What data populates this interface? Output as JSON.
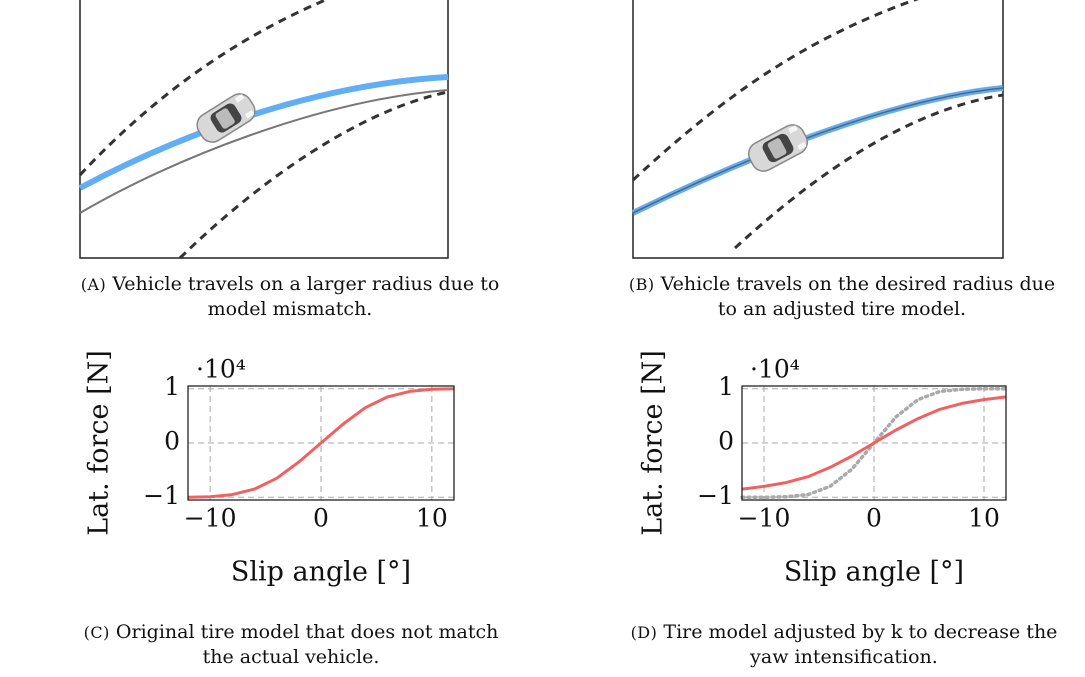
{
  "diagrams": [
    {
      "label": "(A)",
      "caption_lines": [
        "Vehicle travels on a larger radius due to",
        "model mismatch."
      ]
    },
    {
      "label": "(B)",
      "caption_lines": [
        "Vehicle travels on the desired radius due",
        "to an adjusted tire model."
      ]
    }
  ],
  "chart_data": [
    {
      "type": "line",
      "label": "(C)",
      "caption_lines": [
        "Original tire model that does not match",
        "the actual vehicle."
      ],
      "x_label": "Slip angle [°]",
      "y_label": "Lat. force [N]",
      "y_scale_label": "·10⁴",
      "x": [
        -12,
        -10,
        -8,
        -6,
        -4,
        -2,
        0,
        2,
        4,
        6,
        8,
        10,
        12
      ],
      "series": [
        {
          "color": "#f06262",
          "style": "solid",
          "values": [
            -1.0,
            -0.99,
            -0.95,
            -0.85,
            -0.65,
            -0.35,
            0,
            0.35,
            0.65,
            0.85,
            0.95,
            0.99,
            1.0
          ]
        }
      ],
      "xlim": [
        -12,
        12
      ],
      "ylim": [
        -1.05,
        1.05
      ],
      "xticks": [
        {
          "value": -10,
          "label": "−10"
        },
        0,
        10
      ],
      "yticks": [
        {
          "value": -1,
          "label": "−1"
        },
        0,
        1
      ],
      "grid": true
    },
    {
      "type": "line",
      "label": "(D)",
      "caption_lines": [
        "Tire model adjusted by k to decrease the",
        "yaw intensification."
      ],
      "x_label": "Slip angle [°]",
      "y_label": "Lat. force [N]",
      "y_scale_label": "·10⁴",
      "x": [
        -12,
        -10,
        -8,
        -6,
        -4,
        -2,
        0,
        2,
        4,
        6,
        8,
        10,
        12
      ],
      "series": [
        {
          "color": "#aaaaaa",
          "style": "dotted",
          "values": [
            -1.0,
            -1.0,
            -0.99,
            -0.95,
            -0.8,
            -0.48,
            0,
            0.48,
            0.8,
            0.95,
            0.99,
            1.0,
            1.0
          ]
        },
        {
          "color": "#f06262",
          "style": "solid",
          "values": [
            -0.85,
            -0.8,
            -0.73,
            -0.62,
            -0.45,
            -0.24,
            0,
            0.24,
            0.45,
            0.62,
            0.73,
            0.8,
            0.85
          ]
        }
      ],
      "xlim": [
        -12,
        12
      ],
      "ylim": [
        -1.05,
        1.05
      ],
      "xticks": [
        {
          "value": -10,
          "label": "−10"
        },
        0,
        10
      ],
      "yticks": [
        {
          "value": -1,
          "label": "−1"
        },
        0,
        1
      ],
      "grid": true
    }
  ]
}
